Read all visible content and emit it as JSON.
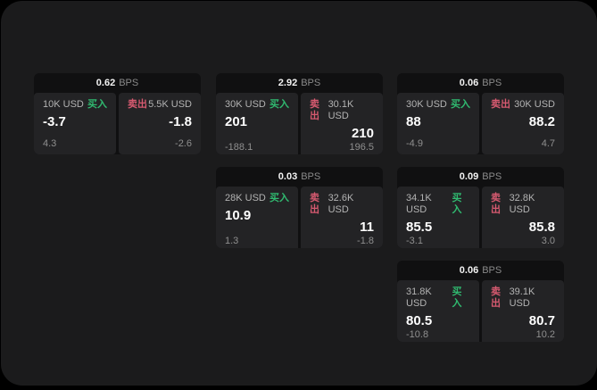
{
  "labels": {
    "unit": "BPS",
    "buy": "买入",
    "sell": "卖出"
  },
  "colors": {
    "background": "#000000",
    "surface": "#1b1b1c",
    "card": "#101011",
    "panel": "#232325",
    "buy_accent": "#30ba70",
    "sell_accent": "#d65a70"
  },
  "cards": [
    {
      "bps": "0.62",
      "buy": {
        "amount": "10K USD",
        "price": "-3.7",
        "delta": "4.3"
      },
      "sell": {
        "amount": "5.5K USD",
        "price": "-1.8",
        "delta": "-2.6"
      }
    },
    {
      "bps": "2.92",
      "buy": {
        "amount": "30K USD",
        "price": "201",
        "delta": "-188.1"
      },
      "sell": {
        "amount": "30.1K USD",
        "price": "210",
        "delta": "196.5"
      }
    },
    {
      "bps": "0.06",
      "buy": {
        "amount": "30K USD",
        "price": "88",
        "delta": "-4.9"
      },
      "sell": {
        "amount": "30K USD",
        "price": "88.2",
        "delta": "4.7"
      }
    },
    {
      "bps": "0.03",
      "buy": {
        "amount": "28K USD",
        "price": "10.9",
        "delta": "1.3"
      },
      "sell": {
        "amount": "32.6K USD",
        "price": "11",
        "delta": "-1.8"
      }
    },
    {
      "bps": "0.09",
      "buy": {
        "amount": "34.1K USD",
        "price": "85.5",
        "delta": "-3.1"
      },
      "sell": {
        "amount": "32.8K USD",
        "price": "85.8",
        "delta": "3.0"
      }
    },
    {
      "bps": "0.06",
      "buy": {
        "amount": "31.8K USD",
        "price": "80.5",
        "delta": "-10.8"
      },
      "sell": {
        "amount": "39.1K USD",
        "price": "80.7",
        "delta": "10.2"
      }
    }
  ]
}
